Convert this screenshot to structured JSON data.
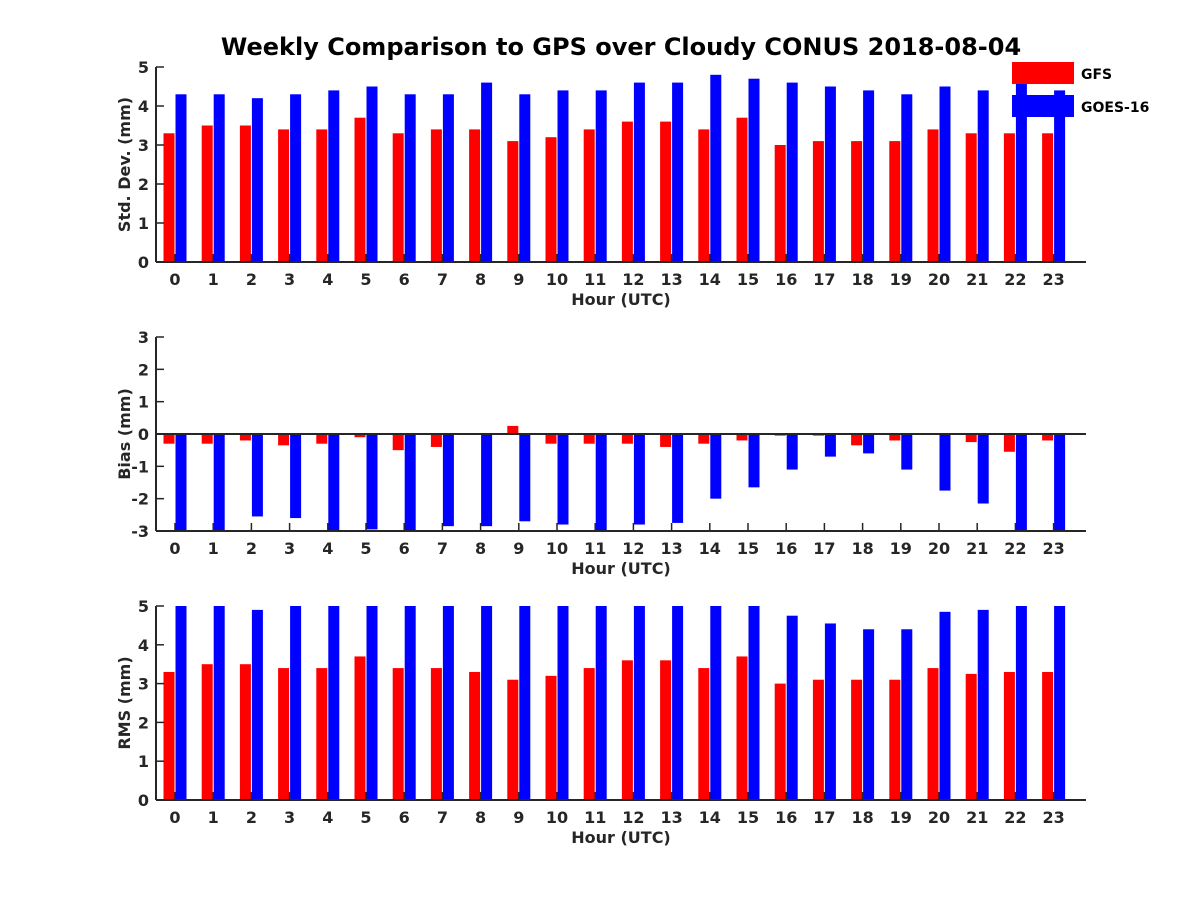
{
  "title": "Weekly Comparison to GPS over Cloudy CONUS 2018-08-04",
  "legend": [
    {
      "name": "GFS",
      "color": "#ff0000"
    },
    {
      "name": "GOES-16",
      "color": "#0000ff"
    }
  ],
  "chart_data": [
    {
      "type": "bar",
      "title": "",
      "xlabel": "Hour (UTC)",
      "ylabel": "Std. Dev. (mm)",
      "ylim": [
        0,
        5
      ],
      "yticks": [
        0,
        1,
        2,
        3,
        4,
        5
      ],
      "categories": [
        "0",
        "1",
        "2",
        "3",
        "4",
        "5",
        "6",
        "7",
        "8",
        "9",
        "10",
        "11",
        "12",
        "13",
        "14",
        "15",
        "16",
        "17",
        "18",
        "19",
        "20",
        "21",
        "22",
        "23"
      ],
      "series": [
        {
          "name": "GFS",
          "color": "#ff0000",
          "values": [
            3.3,
            3.5,
            3.5,
            3.4,
            3.4,
            3.7,
            3.3,
            3.4,
            3.4,
            3.1,
            3.2,
            3.4,
            3.6,
            3.6,
            3.4,
            3.7,
            3.0,
            3.1,
            3.1,
            3.1,
            3.4,
            3.3,
            3.3,
            3.3
          ]
        },
        {
          "name": "GOES-16",
          "color": "#0000ff",
          "values": [
            4.3,
            4.3,
            4.2,
            4.3,
            4.4,
            4.5,
            4.3,
            4.3,
            4.6,
            4.3,
            4.4,
            4.4,
            4.6,
            4.6,
            4.8,
            4.7,
            4.6,
            4.5,
            4.4,
            4.3,
            4.5,
            4.4,
            4.8,
            4.4
          ]
        }
      ],
      "grid": false,
      "legend_position": "top-right"
    },
    {
      "type": "bar",
      "title": "",
      "xlabel": "Hour (UTC)",
      "ylabel": "Bias (mm)",
      "ylim": [
        -3,
        3
      ],
      "yticks": [
        -3,
        -2,
        -1,
        0,
        1,
        2,
        3
      ],
      "zero_line": true,
      "categories": [
        "0",
        "1",
        "2",
        "3",
        "4",
        "5",
        "6",
        "7",
        "8",
        "9",
        "10",
        "11",
        "12",
        "13",
        "14",
        "15",
        "16",
        "17",
        "18",
        "19",
        "20",
        "21",
        "22",
        "23"
      ],
      "series": [
        {
          "name": "GFS",
          "color": "#ff0000",
          "values": [
            -0.3,
            -0.3,
            -0.2,
            -0.35,
            -0.3,
            -0.1,
            -0.5,
            -0.4,
            0.0,
            0.25,
            -0.3,
            -0.3,
            -0.3,
            -0.4,
            -0.3,
            -0.2,
            -0.05,
            -0.05,
            -0.35,
            -0.2,
            0.0,
            -0.25,
            -0.55,
            -0.2
          ]
        },
        {
          "name": "GOES-16",
          "color": "#0000ff",
          "values": [
            -3.0,
            -3.0,
            -2.55,
            -2.6,
            -3.0,
            -2.95,
            -3.0,
            -2.85,
            -2.85,
            -2.7,
            -2.8,
            -3.0,
            -2.8,
            -2.75,
            -2.0,
            -1.65,
            -1.1,
            -0.7,
            -0.6,
            -1.1,
            -1.75,
            -2.15,
            -3.0,
            -3.0
          ]
        }
      ],
      "grid": false
    },
    {
      "type": "bar",
      "title": "",
      "xlabel": "Hour (UTC)",
      "ylabel": "RMS (mm)",
      "ylim": [
        0,
        5
      ],
      "yticks": [
        0,
        1,
        2,
        3,
        4,
        5
      ],
      "categories": [
        "0",
        "1",
        "2",
        "3",
        "4",
        "5",
        "6",
        "7",
        "8",
        "9",
        "10",
        "11",
        "12",
        "13",
        "14",
        "15",
        "16",
        "17",
        "18",
        "19",
        "20",
        "21",
        "22",
        "23"
      ],
      "series": [
        {
          "name": "GFS",
          "color": "#ff0000",
          "values": [
            3.3,
            3.5,
            3.5,
            3.4,
            3.4,
            3.7,
            3.4,
            3.4,
            3.3,
            3.1,
            3.2,
            3.4,
            3.6,
            3.6,
            3.4,
            3.7,
            3.0,
            3.1,
            3.1,
            3.1,
            3.4,
            3.25,
            3.3,
            3.3
          ]
        },
        {
          "name": "GOES-16",
          "color": "#0000ff",
          "values": [
            5.0,
            5.0,
            4.9,
            5.0,
            5.0,
            5.0,
            5.0,
            5.0,
            5.0,
            5.0,
            5.0,
            5.0,
            5.0,
            5.0,
            5.0,
            5.0,
            4.75,
            4.55,
            4.4,
            4.4,
            4.85,
            4.9,
            5.0,
            5.0
          ]
        }
      ],
      "grid": false
    }
  ]
}
